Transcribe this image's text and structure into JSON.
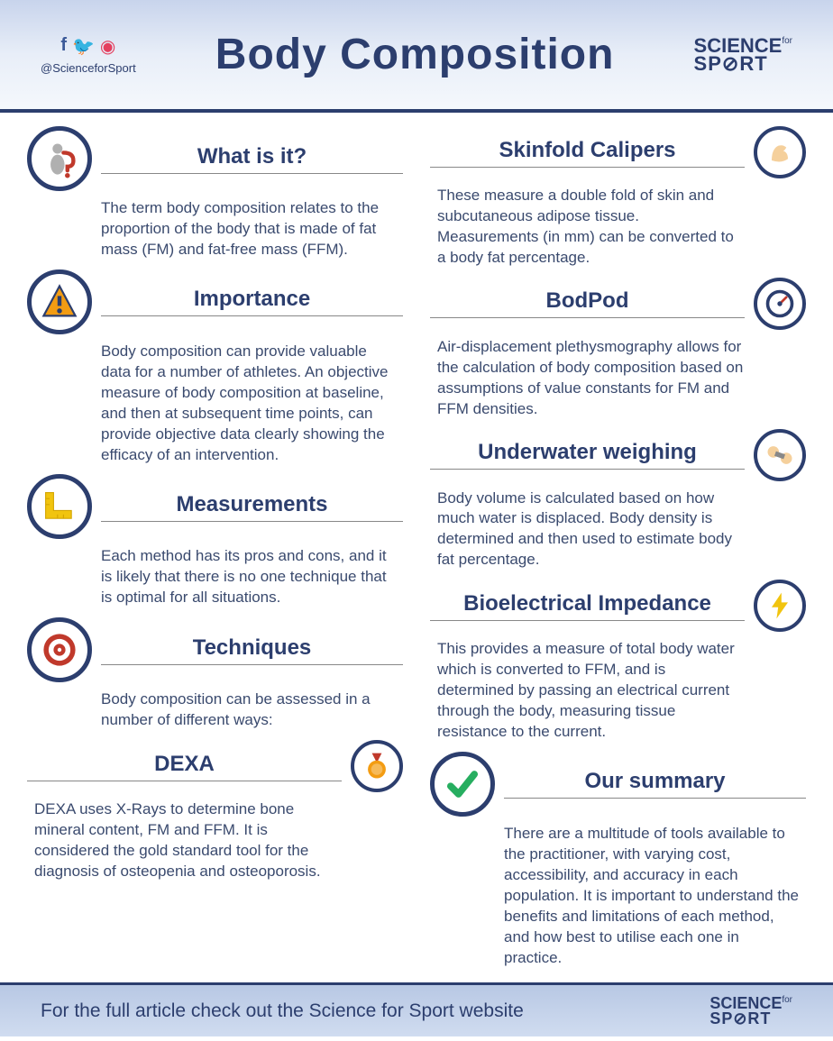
{
  "header": {
    "handle": "@ScienceforSport",
    "title": "Body Composition",
    "logo_top": "SCIENCE",
    "logo_for": "for",
    "logo_bottom": "SP⊘RT"
  },
  "colors": {
    "primary": "#2c3e6e",
    "text": "#3a4a6e",
    "header_grad_top": "#c8d4ec",
    "header_grad_bot": "#f5f8fc",
    "footer_grad": "#b8c8e4",
    "facebook": "#3b5998",
    "twitter": "#1da1f2",
    "instagram": "#e4405f"
  },
  "left_sections": [
    {
      "title": "What is it?",
      "body": "The term body composition relates to the proportion of the body that is made of fat mass (FM) and fat-free mass (FFM).",
      "icon": "question-figure",
      "icon_side": "left"
    },
    {
      "title": "Importance",
      "body": "Body composition can provide valuable data for a number of athletes. An objective measure of body composition at baseline, and then at subsequent time points, can provide objective data clearly showing the efficacy of an intervention.",
      "icon": "warning",
      "icon_side": "left"
    },
    {
      "title": "Measurements",
      "body": "Each method has its pros and cons, and it is likely that there is no one technique that is optimal for all situations.",
      "icon": "ruler",
      "icon_side": "left"
    },
    {
      "title": "Techniques",
      "body": "Body composition can be assessed in a number of different ways:",
      "icon": "target",
      "icon_side": "left"
    },
    {
      "title": "DEXA",
      "body": "DEXA uses X-Rays to determine bone mineral content, FM and FFM. It is considered the gold standard tool for the diagnosis of osteopenia and osteoporosis.",
      "icon": "medal",
      "icon_side": "right"
    }
  ],
  "right_sections": [
    {
      "title": "Skinfold Calipers",
      "body": "These measure a double fold of skin and subcutaneous adipose tissue. Measurements (in mm) can be converted to a body fat percentage.",
      "icon": "muscle",
      "icon_side": "right"
    },
    {
      "title": "BodPod",
      "body": "Air-displacement plethysmography allows for the calculation of body composition based on assumptions of value constants for FM and FFM densities.",
      "icon": "gauge",
      "icon_side": "right"
    },
    {
      "title": "Underwater weighing",
      "body": "Body volume is calculated based on how much water is displaced. Body density is determined and then used to estimate body fat percentage.",
      "icon": "dumbbell",
      "icon_side": "right"
    },
    {
      "title": "Bioelectrical Impedance",
      "body": "This provides a measure of total body water which is converted to FFM, and is determined by passing an electrical current through the body, measuring tissue resistance to the current.",
      "icon": "bolt",
      "icon_side": "right"
    },
    {
      "title": "Our summary",
      "body": "There are a multitude of tools available to the practitioner, with varying cost, accessibility, and accuracy in each population. It is important to understand the benefits and limitations of each method, and how best to utilise each one in practice.",
      "icon": "check",
      "icon_side": "left"
    }
  ],
  "footer": {
    "text": "For the full article check out the Science for Sport website"
  },
  "icons": {
    "question-figure": {
      "type": "svg",
      "color1": "#b0b0b0",
      "color2": "#c0392b"
    },
    "warning": {
      "type": "svg",
      "color1": "#f39c12",
      "color2": "#2c3e6e"
    },
    "ruler": {
      "type": "svg",
      "color1": "#f1c40f"
    },
    "target": {
      "type": "svg",
      "color1": "#c0392b",
      "color2": "#ffffff"
    },
    "medal": {
      "type": "svg",
      "color1": "#f39c12",
      "color2": "#c0392b"
    },
    "muscle": {
      "type": "svg",
      "color1": "#f5d09c"
    },
    "gauge": {
      "type": "svg",
      "color1": "#2c3e6e",
      "color2": "#c0392b"
    },
    "dumbbell": {
      "type": "svg",
      "color1": "#f5d09c",
      "color2": "#888"
    },
    "bolt": {
      "type": "svg",
      "color1": "#f1c40f"
    },
    "check": {
      "type": "svg",
      "color1": "#27ae60"
    }
  }
}
